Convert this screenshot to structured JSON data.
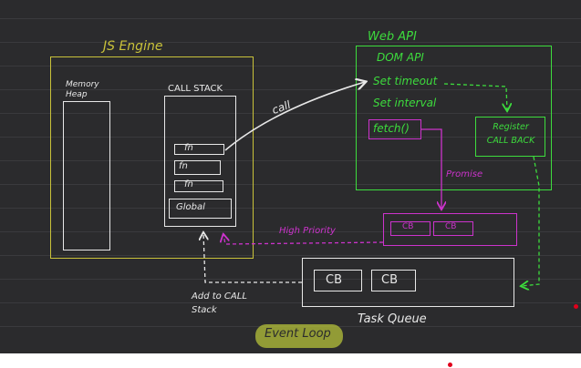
{
  "js_engine": {
    "title": "JS Engine",
    "memory_heap_label": "Memory Heap",
    "call_stack_label": "CALL STACK",
    "stack_frames": [
      "fn",
      "fn",
      "fn",
      "Global"
    ]
  },
  "web_api": {
    "title": "Web API",
    "items": [
      "DOM API",
      "Set timeout",
      "Set interval",
      "fetch()"
    ],
    "register_box": "Register CALL BACK"
  },
  "labels": {
    "call": "call",
    "promise": "Promise",
    "high_priority": "High Priority",
    "add_to_call_stack": "Add to CALL Stack",
    "task_queue": "Task Queue",
    "event_loop": "Event Loop"
  },
  "microtask_queue": [
    "CB",
    "CB"
  ],
  "task_queue_items": [
    "CB",
    "CB"
  ],
  "colors": {
    "board": "#2b2b2d",
    "js_engine": "#c9c23a",
    "web_api": "#3ddc3d",
    "promise": "#cc33cc",
    "ink": "#e8e8e8",
    "highlight": "#b5c23a"
  }
}
